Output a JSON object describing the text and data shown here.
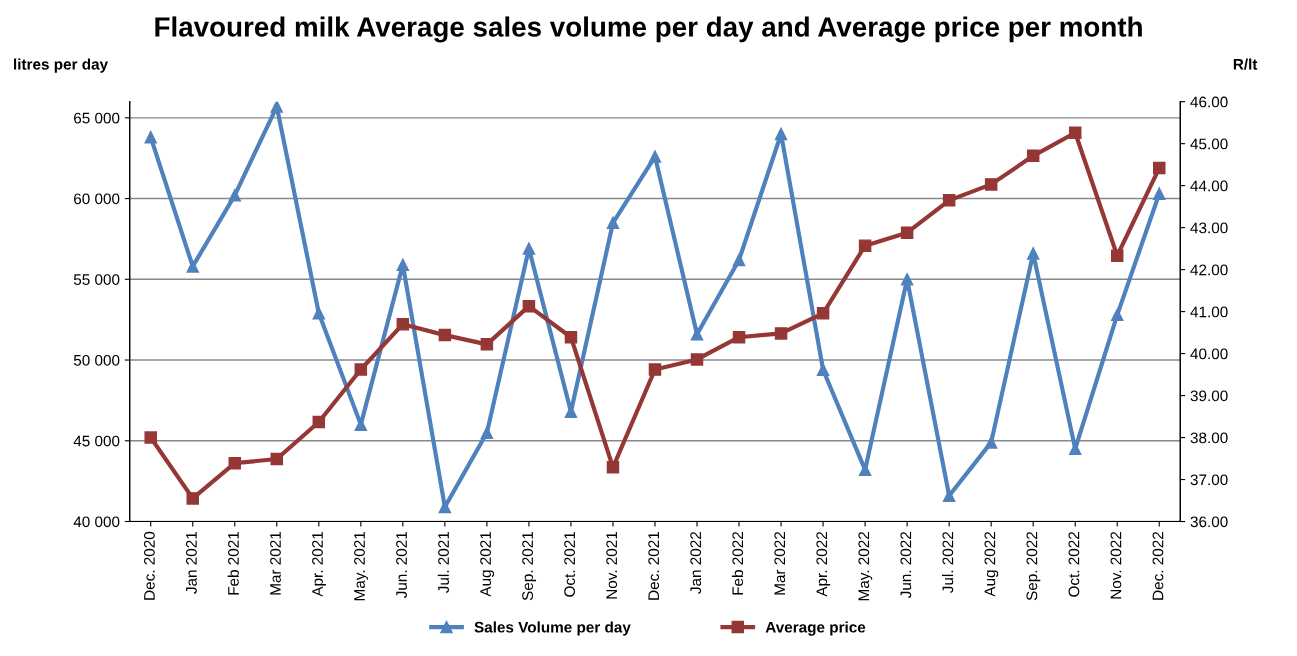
{
  "chart_data": {
    "type": "line",
    "title": "Flavoured milk Average sales volume per day and Average price per month",
    "ylabel": "litres per day",
    "y2label": "R/lt",
    "categories": [
      "Dec. 2020",
      "Jan 2021",
      "Feb 2021",
      "Mar 2021",
      "Apr. 2021",
      "May. 2021",
      "Jun. 2021",
      "Jul. 2021",
      "Aug 2021",
      "Sep. 2021",
      "Oct. 2021",
      "Nov. 2021",
      "Dec. 2021",
      "Jan 2022",
      "Feb 2022",
      "Mar 2022",
      "Apr. 2022",
      "May. 2022",
      "Jun. 2022",
      "Jul. 2022",
      "Aug 2022",
      "Sep. 2022",
      "Oct. 2022",
      "Nov. 2022",
      "Dec. 2022"
    ],
    "series": [
      {
        "name": "Sales Volume per day",
        "color": "#4f81bd",
        "marker": "triangle",
        "values": [
          63800,
          55800,
          60200,
          65700,
          52900,
          46000,
          55900,
          40900,
          45500,
          56900,
          46800,
          58500,
          62600,
          51600,
          56200,
          64000,
          49400,
          43200,
          55000,
          41600,
          44900,
          56600,
          44500,
          52800,
          60300
        ]
      },
      {
        "name": "Average price",
        "color": "#953735",
        "marker": "square",
        "axis": "y2",
        "values": [
          38.0,
          36.55,
          37.39,
          37.49,
          38.37,
          39.62,
          40.7,
          40.44,
          40.22,
          41.13,
          40.39,
          37.29,
          39.62,
          39.86,
          40.39,
          40.48,
          40.96,
          42.57,
          42.88,
          43.65,
          44.03,
          44.71,
          45.26,
          42.33,
          44.42
        ]
      }
    ],
    "ylim": [
      40000,
      66000
    ],
    "yticks": [
      {
        "value": 40000,
        "label": "40 000"
      },
      {
        "value": 45000,
        "label": "45 000"
      },
      {
        "value": 50000,
        "label": "50 000"
      },
      {
        "value": 55000,
        "label": "55 000"
      },
      {
        "value": 60000,
        "label": "60 000"
      },
      {
        "value": 65000,
        "label": "65 000"
      }
    ],
    "y2lim": [
      36,
      46
    ],
    "y2ticks": [
      {
        "value": 36,
        "label": "36.00"
      },
      {
        "value": 37,
        "label": "37.00"
      },
      {
        "value": 38,
        "label": "38.00"
      },
      {
        "value": 39,
        "label": "39.00"
      },
      {
        "value": 40,
        "label": "40.00"
      },
      {
        "value": 41,
        "label": "41.00"
      },
      {
        "value": 42,
        "label": "42.00"
      },
      {
        "value": 43,
        "label": "43.00"
      },
      {
        "value": 44,
        "label": "44.00"
      },
      {
        "value": 45,
        "label": "45.00"
      },
      {
        "value": 46,
        "label": "46.00"
      }
    ],
    "grid": "y",
    "legend": "bottom",
    "line_style": "solid"
  }
}
